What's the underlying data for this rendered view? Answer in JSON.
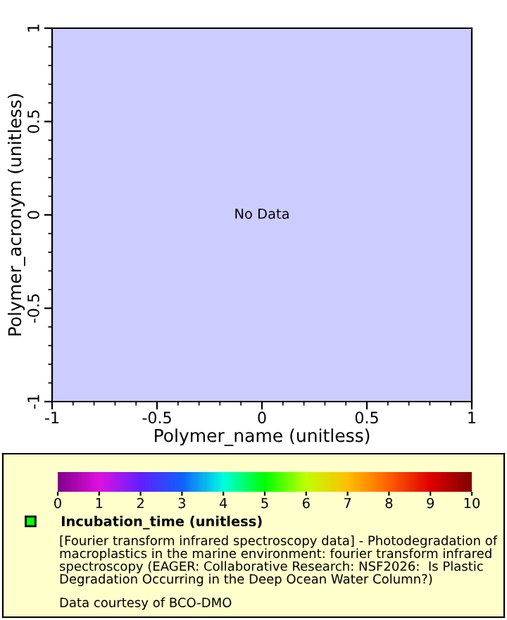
{
  "chart_data": {
    "type": "scatter",
    "xlabel": "Polymer_name (unitless)",
    "ylabel": "Polymer_acronym (unitless)",
    "series": [
      {
        "name": "Incubation_time (unitless)",
        "color": "#00ff00",
        "x": [
          null
        ],
        "values": [
          null
        ]
      }
    ],
    "xlim": [
      -1,
      1
    ],
    "ylim": [
      -1,
      1
    ],
    "xticks": [
      -1,
      -0.5,
      0,
      0.5,
      1
    ],
    "yticks": [
      -1,
      -0.5,
      0,
      0.5,
      1
    ],
    "clim": [
      0,
      10
    ],
    "cticks": [
      0,
      1,
      2,
      3,
      4,
      5,
      6,
      7,
      8,
      9,
      10
    ],
    "legend": "bottom",
    "grid": false,
    "marker": "square",
    "annotations": [
      "No Data",
      "[Fourier transform infrared spectroscopy data] - Photodegradation of macroplastics in the marine environment: fourier transform infrared spectroscopy (EAGER: Collaborative Research: NSF2026:  Is Plastic Degradation Occurring in the Deep Ocean Water Column?)",
      "Data courtesy of BCO-DMO"
    ]
  }
}
